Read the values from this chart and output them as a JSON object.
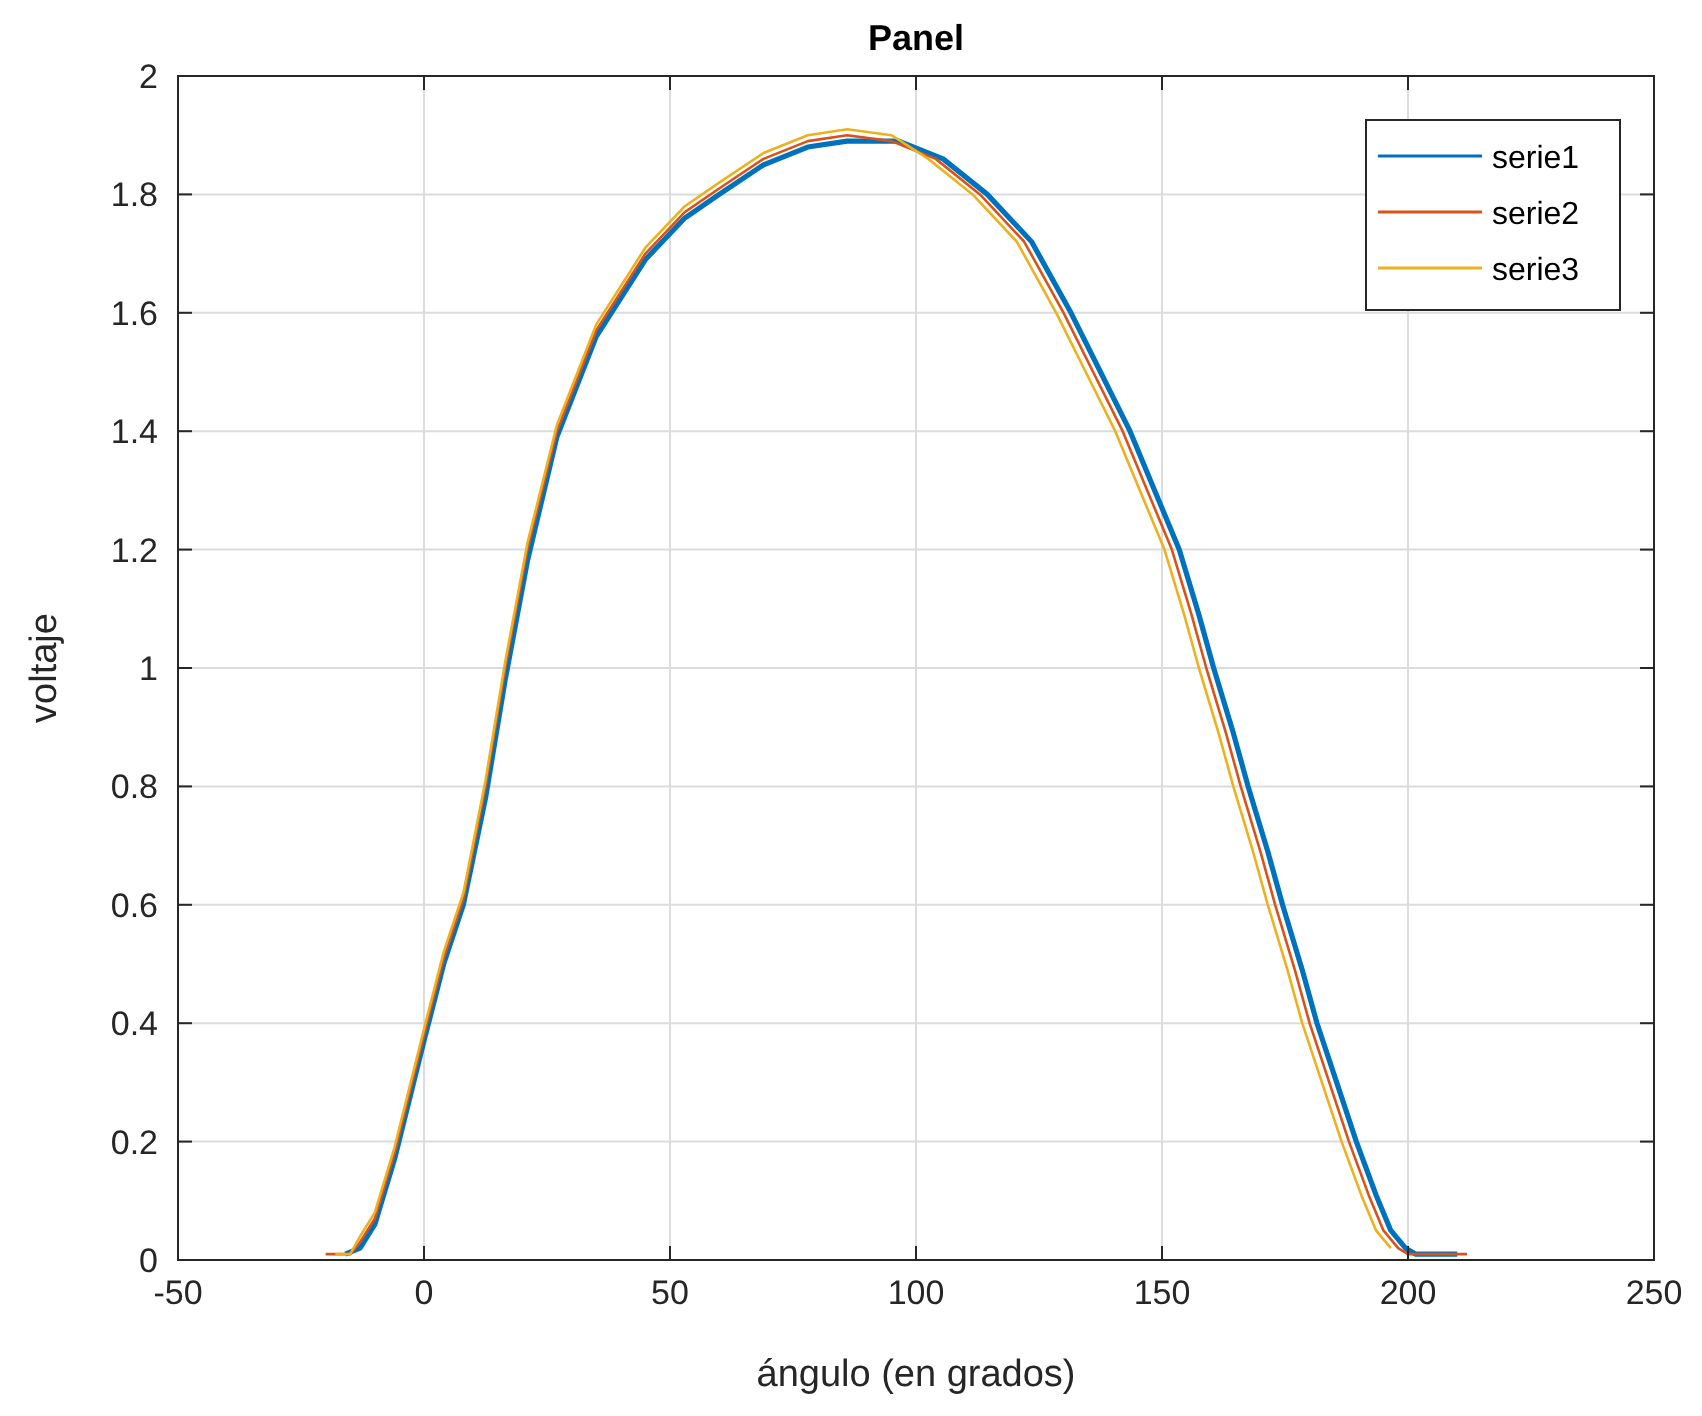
{
  "chart_data": {
    "type": "line",
    "title": "Panel",
    "xlabel": "ángulo (en grados)",
    "ylabel": "voltaje",
    "xlim": [
      -50,
      250
    ],
    "ylim": [
      0,
      2
    ],
    "xticks": [
      -50,
      0,
      50,
      100,
      150,
      200,
      250
    ],
    "yticks": [
      0,
      0.2,
      0.4,
      0.6,
      0.8,
      1,
      1.2,
      1.4,
      1.6,
      1.8,
      2
    ],
    "grid": true,
    "legend": "top right",
    "line_style": "solid",
    "marker": "none",
    "series": [
      {
        "name": "serie1",
        "color": "#0072bd",
        "x": [
          -16,
          -13,
          -10,
          -6,
          -3,
          0,
          4,
          8,
          12.5,
          16.5,
          21,
          27,
          35,
          45,
          53,
          60,
          69,
          78,
          86,
          96.5,
          105.5,
          114.5,
          123.5,
          131.5,
          137.5,
          143.5,
          148.5,
          153.5,
          157.5,
          160.5,
          164.5,
          167.5,
          171.5,
          174.5,
          178.5,
          181.5,
          185.5,
          189.5,
          193.5,
          196.5,
          199.5,
          201.5,
          206,
          210
        ],
        "values": [
          0.01,
          0.02,
          0.06,
          0.17,
          0.27,
          0.37,
          0.5,
          0.6,
          0.78,
          0.98,
          1.18,
          1.39,
          1.56,
          1.69,
          1.76,
          1.8,
          1.85,
          1.88,
          1.89,
          1.89,
          1.86,
          1.8,
          1.72,
          1.6,
          1.5,
          1.4,
          1.3,
          1.2,
          1.09,
          1,
          0.89,
          0.8,
          0.69,
          0.6,
          0.49,
          0.4,
          0.3,
          0.2,
          0.11,
          0.05,
          0.02,
          0.01,
          0.01,
          0.01
        ]
      },
      {
        "name": "serie2",
        "color": "#d95319",
        "x": [
          -20,
          -15,
          -13,
          -10,
          -6,
          -3,
          0,
          4,
          8,
          12.5,
          16.5,
          21,
          27,
          35,
          45,
          53,
          60,
          69,
          78,
          86,
          95,
          104,
          113,
          122,
          130,
          136,
          142,
          147,
          152,
          156,
          159,
          163,
          166,
          170,
          173,
          177,
          180,
          184,
          188,
          192,
          195,
          198,
          200,
          205,
          212
        ],
        "values": [
          0.01,
          0.01,
          0.03,
          0.07,
          0.18,
          0.28,
          0.38,
          0.51,
          0.61,
          0.8,
          1,
          1.2,
          1.4,
          1.57,
          1.7,
          1.77,
          1.81,
          1.86,
          1.89,
          1.9,
          1.89,
          1.86,
          1.8,
          1.72,
          1.6,
          1.5,
          1.4,
          1.3,
          1.2,
          1.09,
          1,
          0.89,
          0.8,
          0.69,
          0.6,
          0.49,
          0.4,
          0.3,
          0.2,
          0.11,
          0.05,
          0.02,
          0.01,
          0.01,
          0.01
        ]
      },
      {
        "name": "serie3",
        "color": "#edb120",
        "x": [
          -18,
          -15,
          -13,
          -10,
          -6,
          -3,
          0,
          4,
          8,
          12.5,
          16.5,
          21,
          27,
          35,
          45,
          53,
          60,
          69,
          78,
          86,
          95,
          102.5,
          111.5,
          120.5,
          128.5,
          134.5,
          140.5,
          145.5,
          150.5,
          154.5,
          157.5,
          161.5,
          164.5,
          168.5,
          171.5,
          175.5,
          178.5,
          182.5,
          186.5,
          190.5,
          193.5,
          196.5
        ],
        "values": [
          0.01,
          0.01,
          0.04,
          0.08,
          0.19,
          0.29,
          0.39,
          0.52,
          0.62,
          0.81,
          1.01,
          1.21,
          1.41,
          1.58,
          1.71,
          1.78,
          1.82,
          1.87,
          1.9,
          1.91,
          1.9,
          1.86,
          1.8,
          1.72,
          1.6,
          1.5,
          1.4,
          1.3,
          1.2,
          1.09,
          1,
          0.89,
          0.8,
          0.69,
          0.6,
          0.49,
          0.4,
          0.3,
          0.2,
          0.11,
          0.05,
          0.02
        ]
      }
    ]
  }
}
